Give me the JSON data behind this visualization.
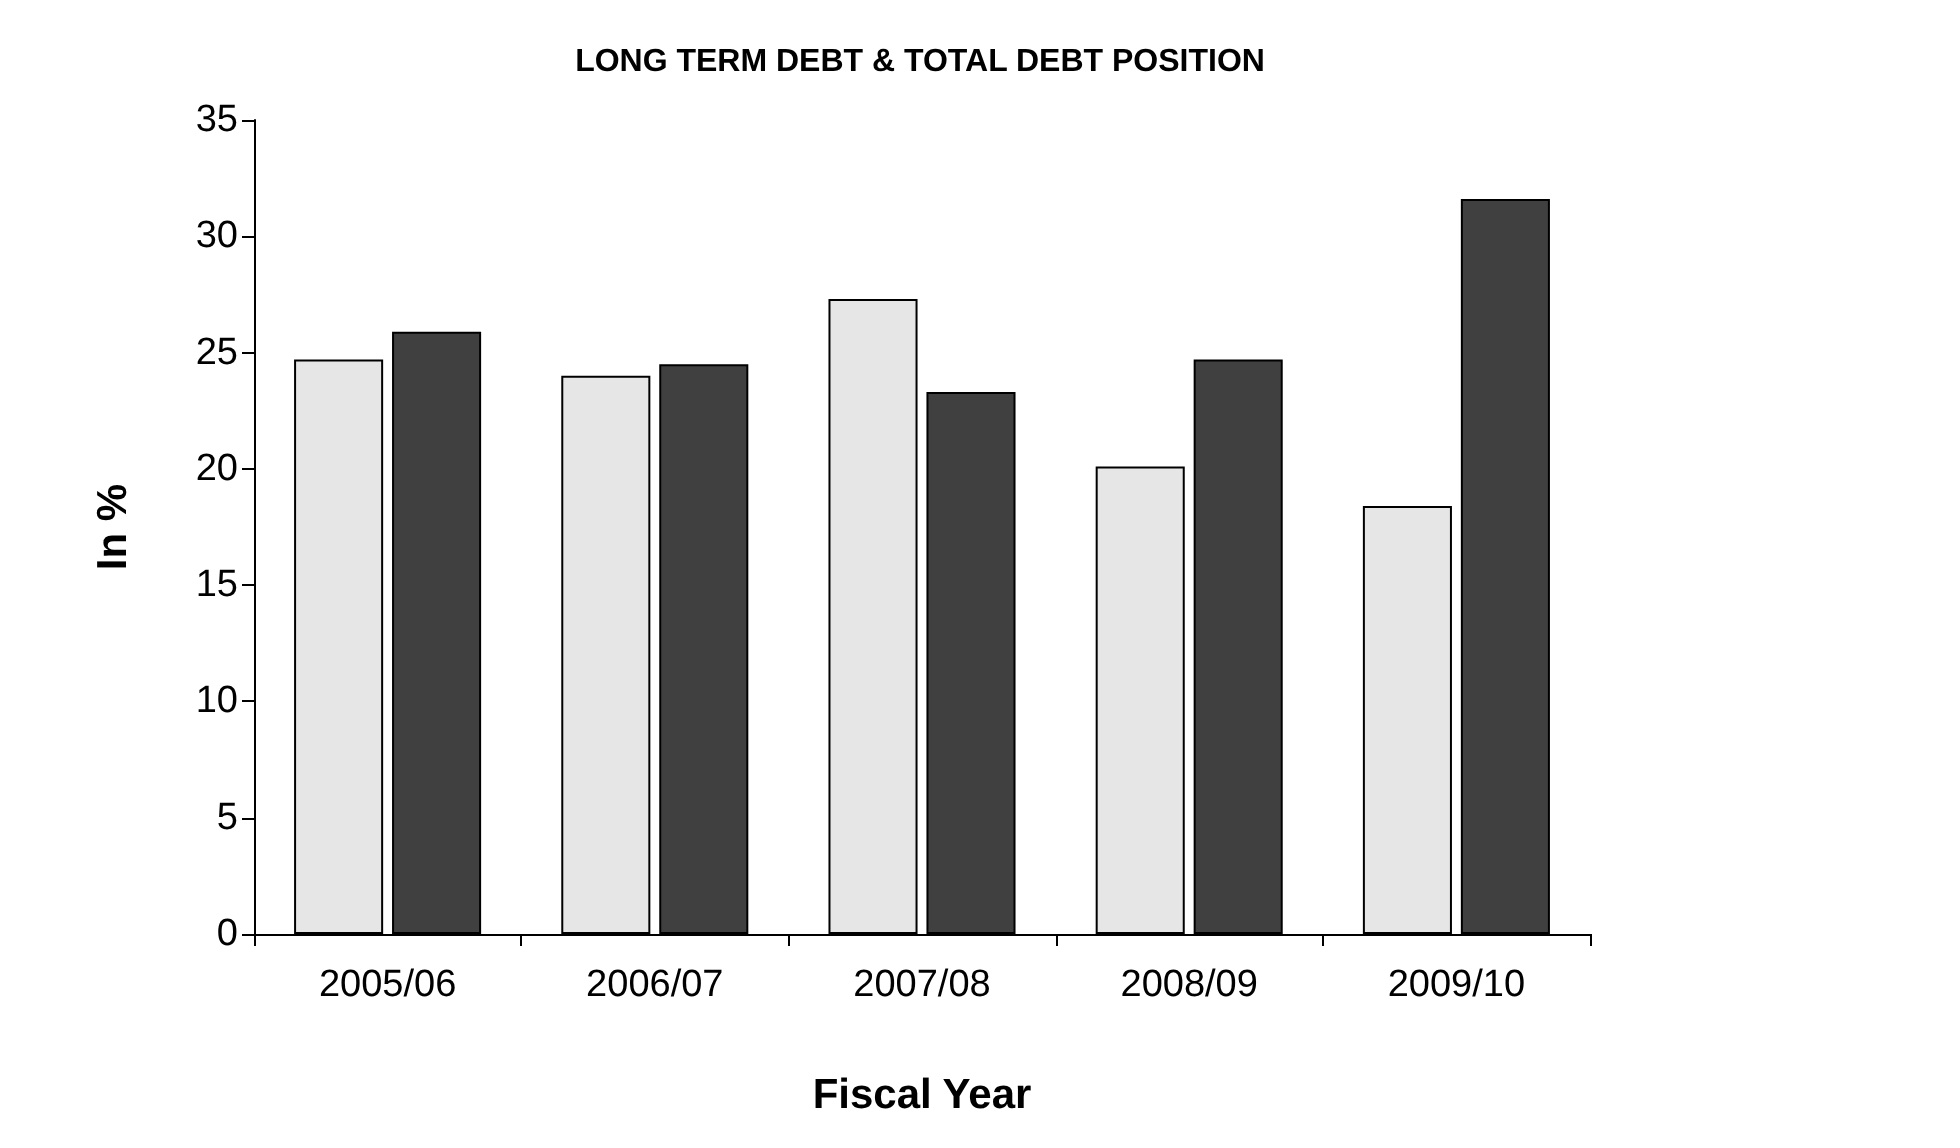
{
  "chart_data": {
    "type": "bar",
    "title": "LONG TERM DEBT & TOTAL DEBT POSITION",
    "xlabel": "Fiscal Year",
    "ylabel": "In %",
    "categories": [
      "2005/06",
      "2006/07",
      "2007/08",
      "2008/09",
      "2009/10"
    ],
    "series": [
      {
        "color": "#e6e6e6",
        "values": [
          24.7,
          24.0,
          27.3,
          20.1,
          18.4
        ]
      },
      {
        "color": "#404040",
        "values": [
          25.9,
          24.5,
          23.3,
          24.7,
          31.6
        ]
      }
    ],
    "ylim": [
      0,
      35
    ],
    "yticks": [
      0,
      5,
      10,
      15,
      20,
      25,
      30,
      35
    ],
    "grid": false
  }
}
